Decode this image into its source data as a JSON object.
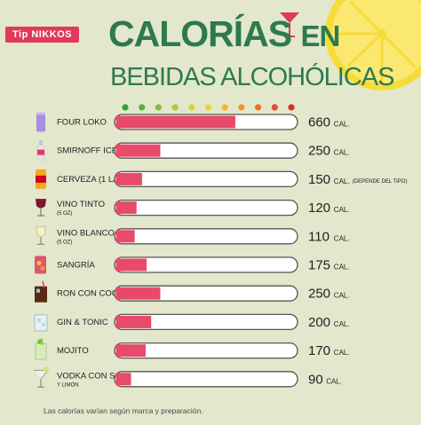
{
  "brand": "Tip NIKKOS",
  "title_line1": "CALORÍAS",
  "title_line1_suffix": "EN",
  "title_line2": "BEBIDAS ALCOHÓLICAS",
  "footnote": "Las calorías varían según marca y preparación.",
  "colors": {
    "background": "#e3e7cc",
    "title": "#2d7a4f",
    "bar_fill": "#e84a6a",
    "bar_track": "#ffffff",
    "bar_border": "#555555",
    "text": "#222222"
  },
  "scale_dots": [
    "#2ea043",
    "#54b23c",
    "#7fc23a",
    "#a8cc36",
    "#cfd532",
    "#f2d230",
    "#f7b42c",
    "#f4932a",
    "#ef7026",
    "#e94d2a",
    "#e02b2b"
  ],
  "chart_data": {
    "type": "bar",
    "orientation": "horizontal",
    "xlim": [
      0,
      1000
    ],
    "unit": "CAL.",
    "categories": [
      {
        "label": "FOUR LOKO",
        "sub": "",
        "icon": "four-loko-can-icon"
      },
      {
        "label": "SMIRNOFF ICE",
        "sub": "",
        "icon": "smirnoff-bottle-icon"
      },
      {
        "label": "CERVEZA (1 LATA)",
        "sub": "",
        "icon": "beer-can-icon"
      },
      {
        "label": "VINO TINTO",
        "sub": "(5 OZ)",
        "icon": "red-wine-glass-icon"
      },
      {
        "label": "VINO BLANCO",
        "sub": "(5 OZ)",
        "icon": "white-wine-glass-icon"
      },
      {
        "label": "SANGRÍA",
        "sub": "",
        "icon": "sangria-pitcher-icon"
      },
      {
        "label": "RON CON COCA",
        "sub": "",
        "icon": "rum-coke-glass-icon"
      },
      {
        "label": "GIN & TONIC",
        "sub": "",
        "icon": "gin-tonic-glass-icon"
      },
      {
        "label": "MOJITO",
        "sub": "",
        "icon": "mojito-glass-icon"
      },
      {
        "label": "VODKA CON SODA",
        "sub": "Y LIMÓN",
        "icon": "martini-glass-icon"
      }
    ],
    "values": [
      660,
      250,
      150,
      120,
      110,
      175,
      250,
      200,
      170,
      90
    ],
    "value_notes": [
      "",
      "",
      "(DEPENDE DEL TIPO)",
      "",
      "",
      "",
      "",
      "",
      "",
      ""
    ]
  }
}
